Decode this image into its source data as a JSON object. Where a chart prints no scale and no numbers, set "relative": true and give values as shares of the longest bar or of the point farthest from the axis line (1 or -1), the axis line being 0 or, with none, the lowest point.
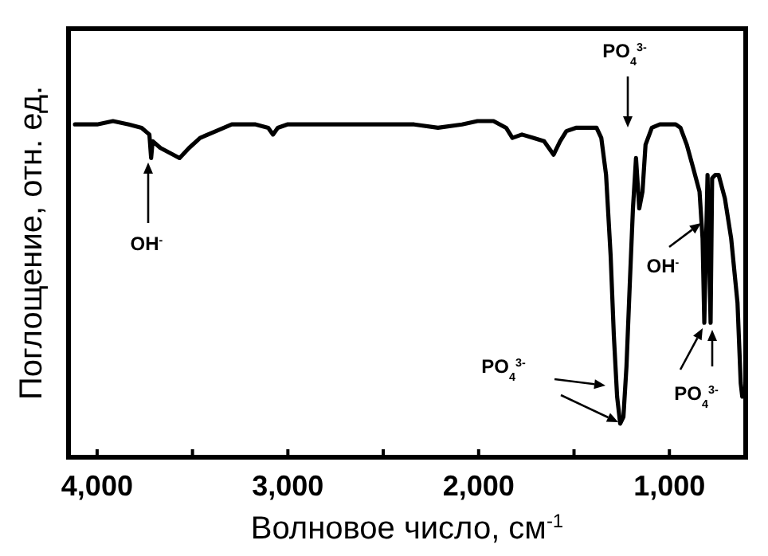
{
  "chart_data": {
    "type": "line",
    "relative": true,
    "xlabel": "Волновое число, см$^{-1}$",
    "ylabel": "Поглощение, отн. ед.",
    "xlim": [
      4150,
      600
    ],
    "xticks": [
      {
        "value": 4000,
        "label": "4,000"
      },
      {
        "value": 3500,
        "label": null
      },
      {
        "value": 3000,
        "label": "3,000"
      },
      {
        "value": 2500,
        "label": null
      },
      {
        "value": 2000,
        "label": "2,000"
      },
      {
        "value": 1500,
        "label": null
      },
      {
        "value": 1000,
        "label": "1,000"
      }
    ],
    "grid": false,
    "marker": "none",
    "line_style": "solid",
    "series": [
      {
        "color": "#000000",
        "x": [
          4116,
          4000,
          3917,
          3834,
          3767,
          3726,
          3717,
          3709,
          3668,
          3601,
          3568,
          3518,
          3460,
          3377,
          3294,
          3169,
          3103,
          3078,
          3053,
          3003,
          2837,
          2504,
          2338,
          2213,
          2087,
          2006,
          1922,
          1856,
          1823,
          1773,
          1715,
          1657,
          1607,
          1573,
          1540,
          1490,
          1424,
          1382,
          1357,
          1332,
          1308,
          1291,
          1274,
          1258,
          1241,
          1225,
          1208,
          1191,
          1175,
          1158,
          1141,
          1125,
          1092,
          1050,
          967,
          942,
          909,
          875,
          842,
          826,
          817,
          800,
          784,
          776,
          759,
          742,
          709,
          676,
          643,
          626,
          618
        ],
        "values": [
          0.99,
          0.99,
          1.0,
          0.99,
          0.98,
          0.96,
          0.89,
          0.94,
          0.92,
          0.9,
          0.89,
          0.92,
          0.95,
          0.97,
          0.99,
          0.99,
          0.98,
          0.96,
          0.98,
          0.99,
          0.99,
          0.99,
          0.99,
          0.98,
          0.99,
          1.0,
          1.0,
          0.98,
          0.95,
          0.96,
          0.95,
          0.94,
          0.9,
          0.94,
          0.97,
          0.98,
          0.98,
          0.98,
          0.95,
          0.84,
          0.6,
          0.36,
          0.18,
          0.1,
          0.12,
          0.27,
          0.51,
          0.74,
          0.89,
          0.74,
          0.79,
          0.93,
          0.98,
          0.99,
          0.99,
          0.98,
          0.93,
          0.86,
          0.79,
          0.65,
          0.4,
          0.84,
          0.4,
          0.83,
          0.84,
          0.84,
          0.77,
          0.65,
          0.46,
          0.22,
          0.18
        ]
      }
    ],
    "annotations": [
      "OH$^{-}$",
      "PO$_{4}$$^{3-}$",
      "PO$_{4}$$^{3-}$",
      "OH$^{-}$",
      "PO$_{4}$$^{3-}$"
    ]
  }
}
